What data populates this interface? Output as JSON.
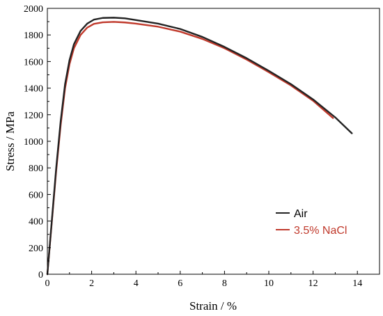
{
  "chart_data": {
    "type": "line",
    "title": "",
    "xlabel": "Strain / %",
    "ylabel": "Stress / MPa",
    "xlim": [
      0,
      15
    ],
    "ylim": [
      0,
      2000
    ],
    "x_ticks": [
      0,
      2,
      4,
      6,
      8,
      10,
      12,
      14
    ],
    "y_ticks": [
      0,
      200,
      400,
      600,
      800,
      1000,
      1200,
      1400,
      1600,
      1800,
      2000
    ],
    "x_tick_labels": [
      "0",
      "2",
      "4",
      "6",
      "8",
      "10",
      "12",
      "14"
    ],
    "y_tick_labels": [
      "0",
      "200",
      "400",
      "600",
      "800",
      "1000",
      "1200",
      "1400",
      "1600",
      "1800",
      "2000"
    ],
    "grid": false,
    "legend_position": "bottom-right",
    "series": [
      {
        "name": "Air",
        "color": "#222222",
        "x": [
          0,
          0.2,
          0.4,
          0.6,
          0.8,
          1.0,
          1.2,
          1.5,
          1.8,
          2.1,
          2.5,
          3.0,
          3.5,
          4.0,
          5.0,
          6.0,
          7.0,
          8.0,
          9.0,
          10.0,
          11.0,
          12.0,
          13.0,
          13.75
        ],
        "y": [
          0,
          400,
          800,
          1150,
          1430,
          1610,
          1730,
          1830,
          1885,
          1915,
          1928,
          1930,
          1925,
          1912,
          1885,
          1845,
          1785,
          1710,
          1625,
          1530,
          1430,
          1315,
          1180,
          1060
        ]
      },
      {
        "name": "3.5% NaCl",
        "color": "#c0392b",
        "x": [
          0,
          0.2,
          0.4,
          0.6,
          0.8,
          1.0,
          1.2,
          1.5,
          1.8,
          2.1,
          2.5,
          3.0,
          3.5,
          4.0,
          5.0,
          6.0,
          7.0,
          8.0,
          9.0,
          10.0,
          11.0,
          12.0,
          12.9
        ],
        "y": [
          0,
          390,
          780,
          1120,
          1400,
          1580,
          1700,
          1800,
          1855,
          1883,
          1895,
          1898,
          1894,
          1885,
          1862,
          1825,
          1770,
          1700,
          1615,
          1520,
          1420,
          1305,
          1175
        ]
      }
    ]
  }
}
